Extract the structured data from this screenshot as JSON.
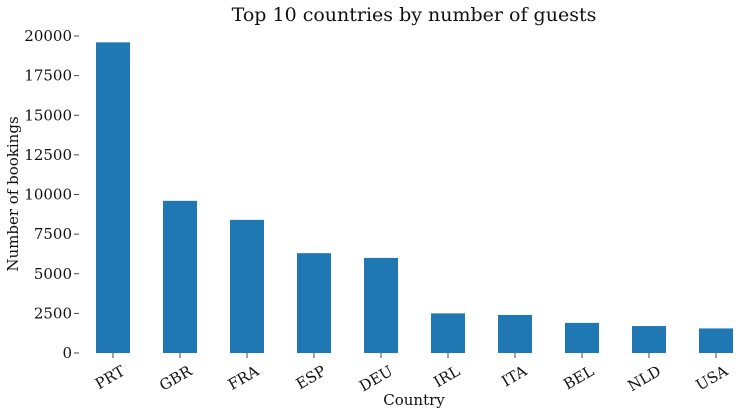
{
  "chart_data": {
    "type": "bar",
    "title": "Top 10 countries by number of guests",
    "xlabel": "Country",
    "ylabel": "Number of bookings",
    "categories": [
      "PRT",
      "GBR",
      "FRA",
      "ESP",
      "DEU",
      "IRL",
      "ITA",
      "BEL",
      "NLD",
      "USA"
    ],
    "values": [
      19600,
      9600,
      8400,
      6300,
      6000,
      2500,
      2400,
      1900,
      1700,
      1550
    ],
    "ylim": [
      0,
      20000
    ],
    "yticks": [
      "0",
      "2500",
      "5000",
      "7500",
      "10000",
      "12500",
      "15000",
      "17500",
      "20000"
    ],
    "grid": false,
    "legend": "none",
    "bar_color": "#1f77b4"
  }
}
